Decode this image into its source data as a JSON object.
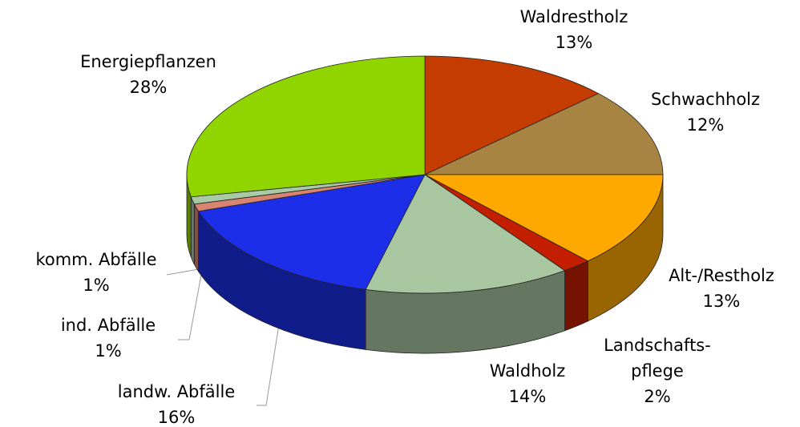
{
  "chart_data": {
    "type": "pie3d",
    "categories": [
      "Waldrestholz",
      "Schwachholz",
      "Alt-/Restholz",
      "Landschafts-\npflege",
      "Waldholz",
      "landw. Abfälle",
      "ind. Abfälle",
      "komm. Abfälle",
      "Energiepflanzen"
    ],
    "values": [
      13,
      12,
      13,
      2,
      14,
      16,
      1,
      1,
      28
    ],
    "value_labels": [
      "13%",
      "12%",
      "13%",
      "2%",
      "14%",
      "16%",
      "1%",
      "1%",
      "28%"
    ],
    "colors": [
      "#c43c00",
      "#a88442",
      "#ffa800",
      "#c41e00",
      "#a8c6a0",
      "#1c2ee8",
      "#d88470",
      "#a8caa4",
      "#90d400"
    ]
  }
}
